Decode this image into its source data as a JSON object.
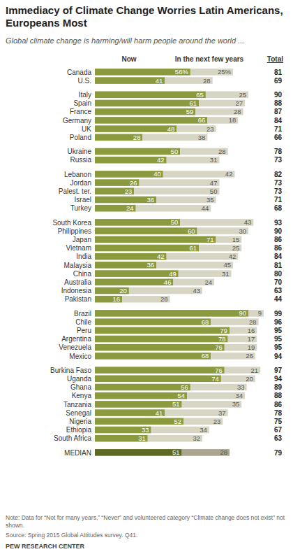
{
  "chart_data": {
    "type": "bar",
    "orientation": "horizontal",
    "stacked": true,
    "data_labels": true,
    "tick_labels": "y",
    "grid": false,
    "title": "Immediacy of Climate Change Worries Latin Americans, Europeans Most",
    "subtitle": "Global climate change is harming/will harm people around the world ...",
    "note": "Note: Data for “Not for many years,” “Never” and volunteered category “Climate change does not exist” not shown.",
    "source": "Source: Spring 2015 Global Attitudes survey. Q41.",
    "credit": "PEW RESEARCH CENTER",
    "categories": [
      "Canada",
      "U.S.",
      null,
      "Italy",
      "Spain",
      "France",
      "Germany",
      "UK",
      "Poland",
      null,
      "Ukraine",
      "Russia",
      null,
      "Lebanon",
      "Jordan",
      "Palest. ter.",
      "Israel",
      "Turkey",
      null,
      "South Korea",
      "Philippines",
      "Japan",
      "Vietnam",
      "India",
      "Malaysia",
      "China",
      "Australia",
      "Indonesia",
      "Pakistan",
      null,
      "Brazil",
      "Chile",
      "Peru",
      "Argentina",
      "Venezuela",
      "Mexico",
      null,
      "Burkina Faso",
      "Uganda",
      "Ghana",
      "Kenya",
      "Tanzania",
      "Senegal",
      "Nigeria",
      "Ethiopia",
      "South Africa",
      null,
      "MEDIAN"
    ],
    "series": [
      {
        "name": "Now",
        "values": [
          56,
          41,
          null,
          65,
          61,
          59,
          66,
          48,
          28,
          null,
          50,
          42,
          null,
          40,
          26,
          23,
          36,
          24,
          null,
          50,
          60,
          71,
          61,
          42,
          36,
          49,
          46,
          20,
          16,
          null,
          90,
          68,
          79,
          78,
          76,
          68,
          null,
          76,
          74,
          56,
          54,
          51,
          41,
          52,
          33,
          31,
          null,
          51
        ],
        "value_labels": [
          "56%",
          "41",
          null,
          "65",
          "61",
          "59",
          "66",
          "48",
          "28",
          null,
          "50",
          "42",
          null,
          "40",
          "26",
          "23",
          "36",
          "24",
          null,
          "50",
          "60",
          "71",
          "61",
          "42",
          "36",
          "49",
          "46",
          "20",
          "16",
          null,
          "90",
          "68",
          "79",
          "78",
          "76",
          "68",
          null,
          "76",
          "74",
          "56",
          "54",
          "51",
          "41",
          "52",
          "33",
          "31",
          null,
          "51"
        ],
        "colors": [
          "#8c9a3f",
          "#8c9a3f",
          null,
          "#8c9a3f",
          "#8c9a3f",
          "#8c9a3f",
          "#8c9a3f",
          "#8c9a3f",
          "#8c9a3f",
          null,
          "#8c9a3f",
          "#8c9a3f",
          null,
          "#8c9a3f",
          "#8c9a3f",
          "#8c9a3f",
          "#8c9a3f",
          "#8c9a3f",
          null,
          "#8c9a3f",
          "#8c9a3f",
          "#8c9a3f",
          "#8c9a3f",
          "#8c9a3f",
          "#8c9a3f",
          "#8c9a3f",
          "#8c9a3f",
          "#8c9a3f",
          "#8c9a3f",
          null,
          "#8c9a3f",
          "#8c9a3f",
          "#8c9a3f",
          "#8c9a3f",
          "#8c9a3f",
          "#8c9a3f",
          null,
          "#8c9a3f",
          "#8c9a3f",
          "#8c9a3f",
          "#8c9a3f",
          "#8c9a3f",
          "#8c9a3f",
          "#8c9a3f",
          "#8c9a3f",
          "#8c9a3f",
          null,
          "#5e6a24"
        ]
      },
      {
        "name": "In the next few years",
        "values": [
          25,
          28,
          null,
          25,
          27,
          28,
          18,
          23,
          38,
          null,
          28,
          31,
          null,
          42,
          47,
          50,
          35,
          44,
          null,
          43,
          30,
          15,
          25,
          42,
          45,
          31,
          24,
          43,
          28,
          null,
          9,
          28,
          16,
          17,
          19,
          26,
          null,
          21,
          20,
          33,
          34,
          35,
          37,
          23,
          34,
          32,
          null,
          28
        ],
        "value_labels": [
          "25%",
          "28",
          null,
          "25",
          "27",
          "28",
          "18",
          "23",
          "38",
          null,
          "28",
          "31",
          null,
          "42",
          "47",
          "50",
          "35",
          "44",
          null,
          "43",
          "30",
          "15",
          "25",
          "42",
          "45",
          "31",
          "24",
          "43",
          "28",
          null,
          "9",
          "28",
          "16",
          "17",
          "19",
          "26",
          null,
          "21",
          "20",
          "33",
          "34",
          "35",
          "37",
          "23",
          "34",
          "32",
          null,
          "28"
        ],
        "colors": [
          "#d7d5c3",
          "#d7d5c3",
          null,
          "#d7d5c3",
          "#d7d5c3",
          "#d7d5c3",
          "#d7d5c3",
          "#d7d5c3",
          "#d7d5c3",
          null,
          "#d7d5c3",
          "#d7d5c3",
          null,
          "#d7d5c3",
          "#d7d5c3",
          "#d7d5c3",
          "#d7d5c3",
          "#d7d5c3",
          null,
          "#d7d5c3",
          "#d7d5c3",
          "#d7d5c3",
          "#d7d5c3",
          "#d7d5c3",
          "#d7d5c3",
          "#d7d5c3",
          "#d7d5c3",
          "#d7d5c3",
          "#d7d5c3",
          null,
          "#d7d5c3",
          "#d7d5c3",
          "#d7d5c3",
          "#d7d5c3",
          "#d7d5c3",
          "#d7d5c3",
          null,
          "#d7d5c3",
          "#d7d5c3",
          "#d7d5c3",
          "#d7d5c3",
          "#d7d5c3",
          "#d7d5c3",
          "#d7d5c3",
          "#d7d5c3",
          "#d7d5c3",
          null,
          "#a9a58e"
        ]
      }
    ],
    "totals": {
      "name": "Total",
      "values": [
        81,
        69,
        null,
        90,
        88,
        87,
        84,
        71,
        66,
        null,
        78,
        73,
        null,
        82,
        73,
        73,
        71,
        68,
        null,
        93,
        90,
        86,
        86,
        84,
        81,
        80,
        70,
        63,
        44,
        null,
        99,
        96,
        95,
        95,
        95,
        94,
        null,
        97,
        94,
        89,
        88,
        86,
        78,
        75,
        67,
        63,
        null,
        79
      ]
    }
  }
}
